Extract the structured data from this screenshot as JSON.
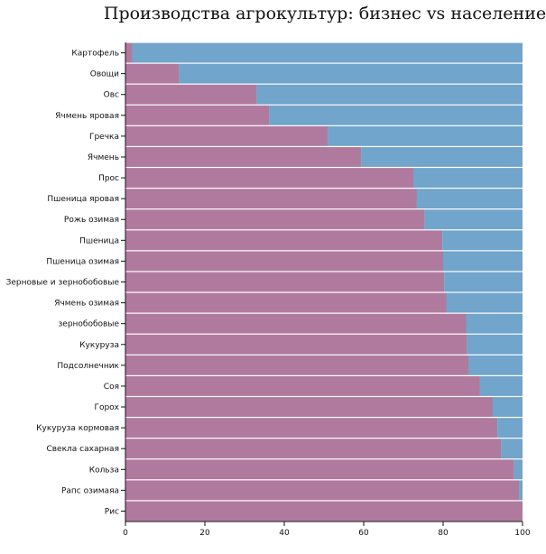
{
  "chart_data": {
    "type": "bar",
    "stacked": true,
    "orientation": "horizontal",
    "normalized_to": 100,
    "title": "Производства агрокультур: бизнес vs население",
    "xlabel": "",
    "ylabel": "",
    "xlim": [
      0,
      100
    ],
    "x_ticks": [
      "0",
      "20",
      "40",
      "60",
      "80",
      "100"
    ],
    "grid": false,
    "legend": "none",
    "categories": [
      "Картофель",
      "Овощи",
      "Овс",
      "Ячмень яровая",
      "Гречка",
      "Ячмень",
      "Прос",
      "Пшеница яровая",
      "Рожь озимая",
      "Пшеница",
      "Пшеница озимая",
      "Зерновые и зернобобовые",
      "Ячмень озимая",
      "зернобобовые",
      "Кукуруза",
      "Подсолнечник",
      "Соя",
      "Горох",
      "Кукуруза кормовая",
      "Свекла сахарная",
      "Кольза",
      "Рапс озимаяа",
      "Рис"
    ],
    "series": [
      {
        "color": "#b07a9e",
        "values": [
          1.8,
          13.6,
          33.1,
          36.3,
          51.0,
          59.4,
          72.6,
          73.4,
          75.4,
          79.8,
          80.0,
          80.3,
          80.9,
          85.8,
          86.1,
          86.5,
          89.3,
          92.5,
          93.7,
          94.7,
          97.9,
          99.1,
          100
        ]
      },
      {
        "color": "#71a5cb",
        "values": [
          98.2,
          86.4,
          66.9,
          63.7,
          49.0,
          40.6,
          27.4,
          26.6,
          24.6,
          20.2,
          20.0,
          19.7,
          19.1,
          14.2,
          13.9,
          13.5,
          10.7,
          7.5,
          6.3,
          5.3,
          2.1,
          0.9,
          0
        ]
      }
    ]
  }
}
